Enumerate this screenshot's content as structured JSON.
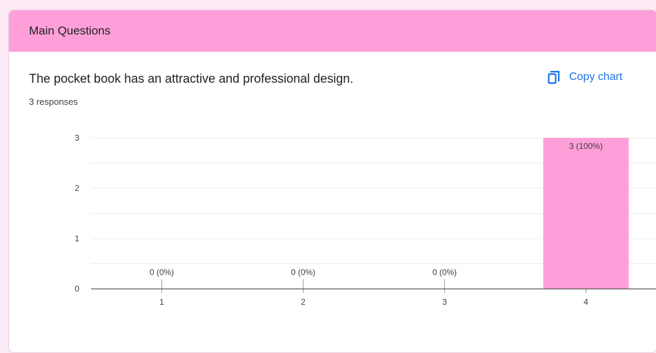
{
  "section": {
    "title": "Main Questions"
  },
  "question": {
    "title": "The pocket book has an attractive and professional design.",
    "responses": "3 responses"
  },
  "actions": {
    "copy_chart": "Copy chart",
    "copy_icon": "copy-icon"
  },
  "colors": {
    "header_bg": "#ff9fd9",
    "bar": "#ff9fd9",
    "accent": "#1a73e8"
  },
  "chart_data": {
    "type": "bar",
    "categories": [
      "1",
      "2",
      "3",
      "4"
    ],
    "values": [
      0,
      0,
      0,
      3
    ],
    "labels": [
      "0 (0%)",
      "0 (0%)",
      "0 (0%)",
      "3 (100%)"
    ],
    "yticks": [
      "0",
      "1",
      "2",
      "3"
    ],
    "ylim": [
      0,
      3
    ],
    "grid": true,
    "title": "",
    "xlabel": "",
    "ylabel": ""
  }
}
